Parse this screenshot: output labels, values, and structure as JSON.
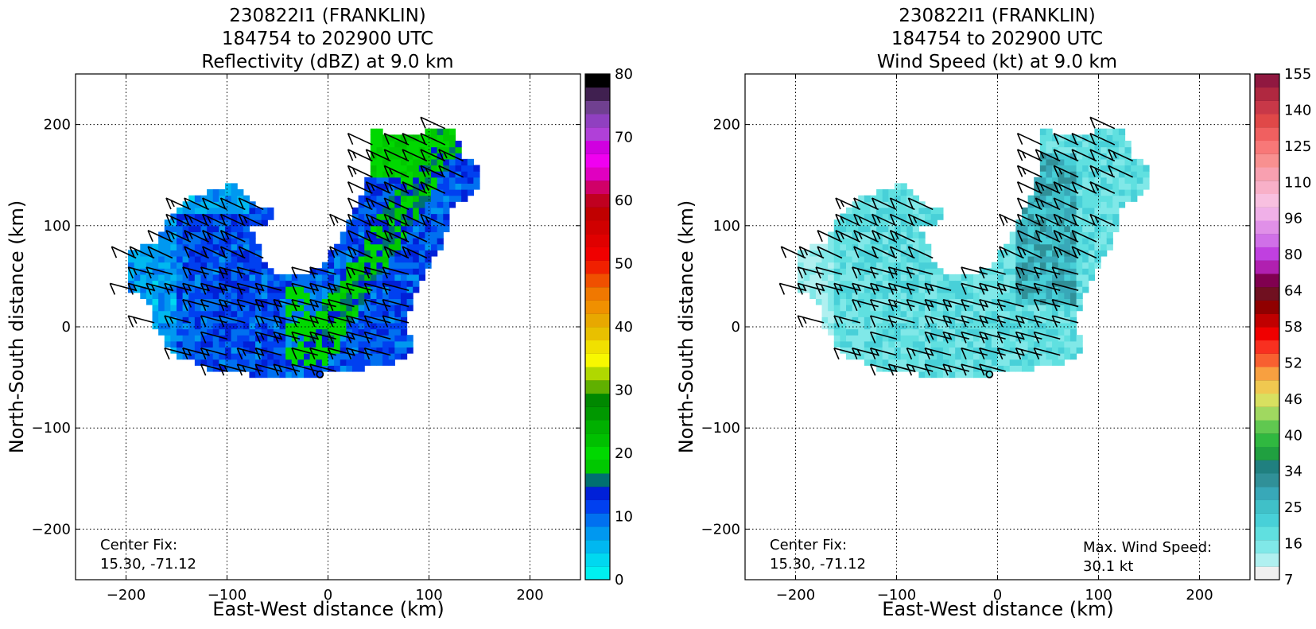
{
  "chart_data": [
    {
      "type": "heatmap",
      "title_lines": [
        "230822I1 (FRANKLIN)",
        "184754 to 202900 UTC",
        "Reflectivity (dBZ) at 9.0 km"
      ],
      "xlabel": "East-West distance (km)",
      "ylabel": "North-South distance (km)",
      "xlim": [
        -250,
        250
      ],
      "ylim": [
        -250,
        250
      ],
      "xticks": [
        -200,
        -100,
        0,
        100,
        200
      ],
      "yticks": [
        -200,
        -100,
        0,
        100,
        200
      ],
      "x_tick_labels": [
        "−200",
        "−100",
        "0",
        "100",
        "200"
      ],
      "y_tick_labels": [
        "−200",
        "−100",
        "0",
        "100",
        "200"
      ],
      "grid": true,
      "center_fix_label": "Center Fix:",
      "center_fix_value": "15.30, -71.12",
      "center_marker": [
        -8,
        -47
      ],
      "colorbar": {
        "min": 0,
        "max": 80,
        "ticks": [
          "0",
          "10",
          "20",
          "30",
          "40",
          "50",
          "60",
          "70",
          "80"
        ],
        "colors": [
          "#00f0f0",
          "#00d8f0",
          "#00b8f0",
          "#0098f0",
          "#0070f0",
          "#0040f0",
          "#0020d8",
          "#007070",
          "#00c800",
          "#00d800",
          "#00c000",
          "#00b000",
          "#009800",
          "#008800",
          "#60b000",
          "#b0d800",
          "#f8f800",
          "#f0e000",
          "#e8c000",
          "#e8a800",
          "#f09000",
          "#f07800",
          "#f05000",
          "#f02000",
          "#f00000",
          "#e00000",
          "#d00000",
          "#c00000",
          "#c00020",
          "#d00068",
          "#e000c0",
          "#f000f0",
          "#d000e0",
          "#b040d8",
          "#9040c0",
          "#704090",
          "#402050",
          "#000000"
        ]
      }
    },
    {
      "type": "heatmap",
      "title_lines": [
        "230822I1 (FRANKLIN)",
        "184754 to 202900 UTC",
        "Wind Speed (kt) at 9.0 km"
      ],
      "xlabel": "East-West distance (km)",
      "ylabel": "North-South distance (km)",
      "xlim": [
        -250,
        250
      ],
      "ylim": [
        -250,
        250
      ],
      "xticks": [
        -200,
        -100,
        0,
        100,
        200
      ],
      "yticks": [
        -200,
        -100,
        0,
        100,
        200
      ],
      "x_tick_labels": [
        "−200",
        "−100",
        "0",
        "100",
        "200"
      ],
      "y_tick_labels": [
        "−200",
        "−100",
        "0",
        "100",
        "200"
      ],
      "grid": true,
      "center_fix_label": "Center Fix:",
      "center_fix_value": "15.30, -71.12",
      "center_marker": [
        -8,
        -47
      ],
      "max_wind_label": "Max. Wind Speed:",
      "max_wind_value": "30.1 kt",
      "colorbar": {
        "ticks": [
          "7",
          "16",
          "25",
          "34",
          "40",
          "46",
          "52",
          "58",
          "64",
          "80",
          "96",
          "110",
          "125",
          "140",
          "155"
        ],
        "colors": [
          "#f0f0f0",
          "#b0f0f0",
          "#80e8e8",
          "#60e0e0",
          "#48d0d8",
          "#40c0c8",
          "#38a8b8",
          "#309098",
          "#208080",
          "#20a040",
          "#30b840",
          "#60c850",
          "#a0d860",
          "#d8e060",
          "#f0c850",
          "#f8a040",
          "#f86030",
          "#f83020",
          "#f00000",
          "#c00000",
          "#900000",
          "#701020",
          "#800050",
          "#b020b0",
          "#c040e0",
          "#d070e8",
          "#e090e8",
          "#f0b0e8",
          "#f8c0e0",
          "#f8b0c8",
          "#f8a0b0",
          "#f89090",
          "#f87878",
          "#f06060",
          "#e04848",
          "#c83848",
          "#b02840",
          "#901840"
        ]
      }
    }
  ]
}
